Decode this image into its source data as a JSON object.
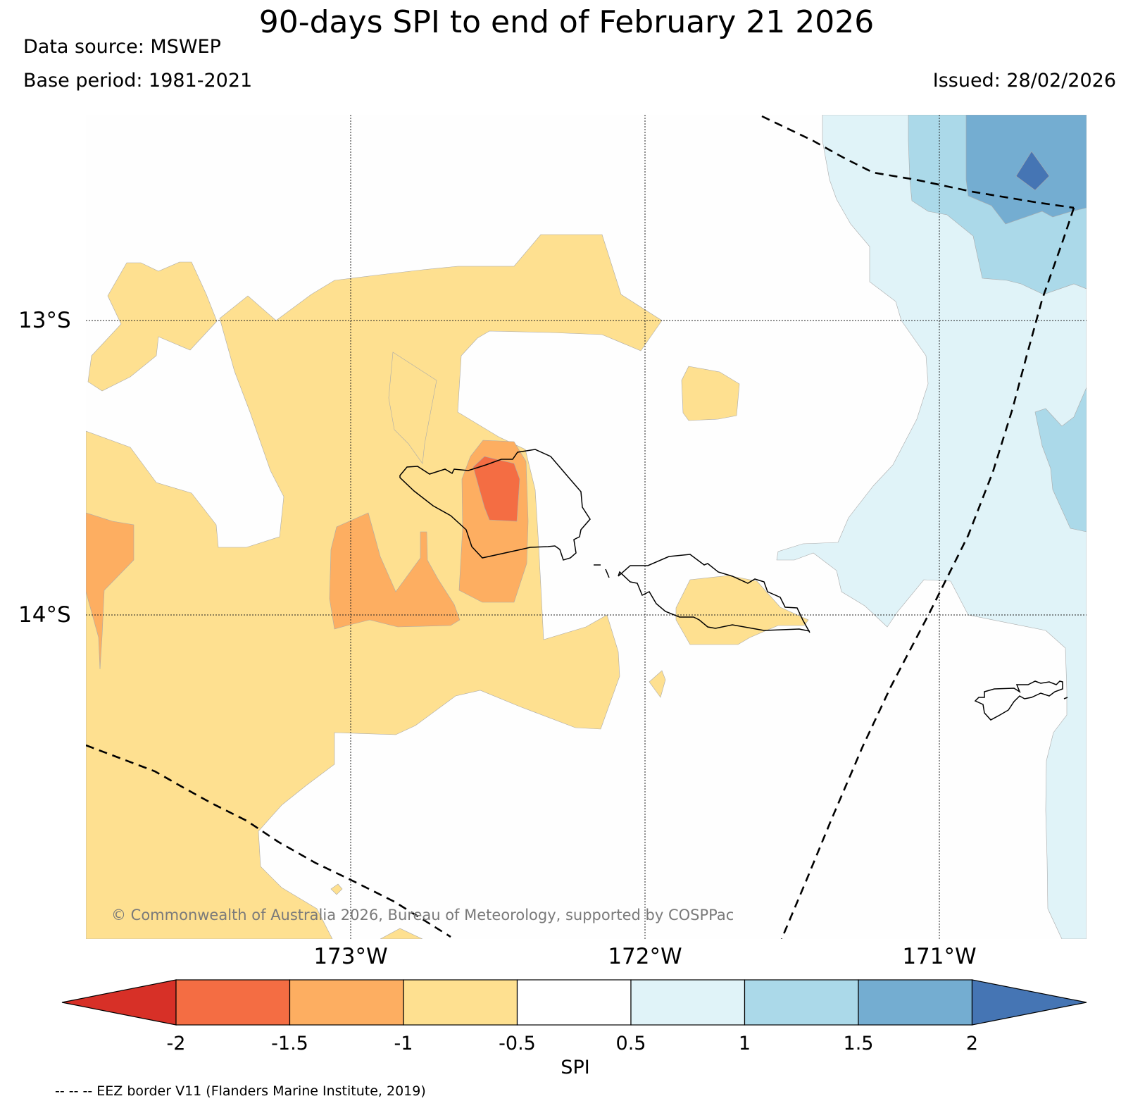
{
  "header": {
    "title": "90-days SPI to end of February 21 2026",
    "data_source": "Data source: MSWEP",
    "base_period": "Base period: 1981-2021",
    "issued": "Issued: 28/02/2026"
  },
  "axes": {
    "lat_labels": [
      "13°S",
      "14°S"
    ],
    "lon_labels": [
      "173°W",
      "172°W",
      "171°W"
    ]
  },
  "legend": {
    "title": "SPI",
    "ticks": [
      "-2",
      "-1.5",
      "-1",
      "-0.5",
      "0.5",
      "1",
      "1.5",
      "2"
    ],
    "classes": [
      {
        "range": "< -2",
        "color": "#d73027"
      },
      {
        "range": "-2 to -1.5",
        "color": "#f46d43"
      },
      {
        "range": "-1.5 to -1",
        "color": "#fdae61"
      },
      {
        "range": "-1 to -0.5",
        "color": "#fee090"
      },
      {
        "range": "-0.5 to 0.5",
        "color": "#ffffff"
      },
      {
        "range": "0.5 to 1",
        "color": "#e0f3f8"
      },
      {
        "range": "1 to 1.5",
        "color": "#abd9e9"
      },
      {
        "range": "1.5 to 2",
        "color": "#74add1"
      },
      {
        "range": "> 2",
        "color": "#4575b4"
      }
    ]
  },
  "footnote": "-- -- -- EEZ border V11 (Flanders Marine Institute, 2019)",
  "copyright": "© Commonwealth of Australia 2026, Bureau of Meteorology, supported by COSPPac"
}
